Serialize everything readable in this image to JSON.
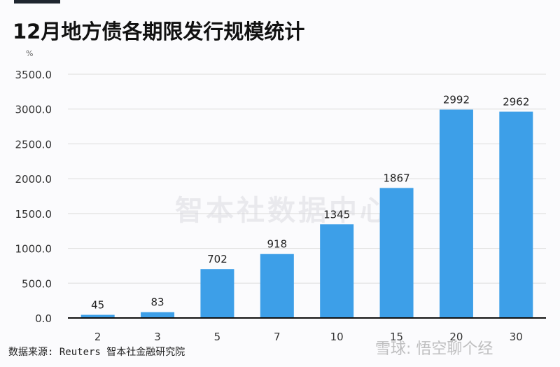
{
  "chart_data": {
    "type": "bar",
    "title": "12月地方债各期限发行规模统计",
    "ylabel": "%",
    "xlabel": "",
    "categories": [
      "2",
      "3",
      "5",
      "7",
      "10",
      "15",
      "20",
      "30"
    ],
    "values": [
      45,
      83,
      702,
      918,
      1345,
      1867,
      2992,
      2962
    ],
    "data_labels": [
      "45",
      "83",
      "702",
      "918",
      "1345",
      "1867",
      "2992",
      "2962"
    ],
    "ylim": [
      0,
      3500
    ],
    "yticks": [
      "0.0",
      "500.0",
      "1000.0",
      "1500.0",
      "2000.0",
      "2500.0",
      "3000.0",
      "3500.0"
    ],
    "grid": true,
    "bar_color": "#3d9fe8"
  },
  "source": "数据来源: Reuters 智本社金融研究院",
  "watermarks": {
    "center": "智本社数据中心",
    "corner": "雪球: 悟空聊个经"
  }
}
